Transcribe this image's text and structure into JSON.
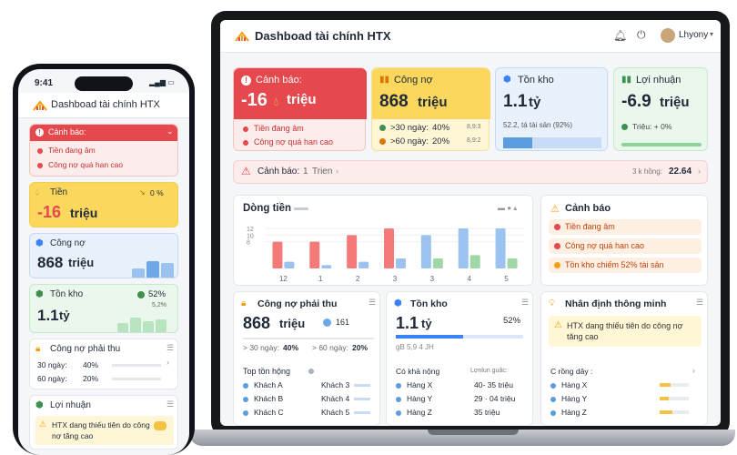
{
  "colors": {
    "red": "#e5484d",
    "red_light": "#fdecec",
    "yellow": "#fbd85d",
    "yellow_light": "#fff6d6",
    "blue": "#6fa8e6",
    "blue_light": "#e8f1fc",
    "green": "#7ccf8a",
    "green_light": "#e9f7ec",
    "accent": "#f59e0b"
  },
  "app": {
    "title": "Dashboad tài chính HTX",
    "user": "Lhyony"
  },
  "kpi": {
    "warning": {
      "label": "Cảnh báo:",
      "value": "-16",
      "unit": "triệu",
      "items": [
        "Tiền đang âm",
        "Công nợ quá han cao"
      ]
    },
    "debt": {
      "label": "Công nợ",
      "value": "868",
      "unit": "triệu",
      "rows": [
        {
          "label": ">30 ngày:",
          "pct": "40%",
          "note": "8,9:3"
        },
        {
          "label": ">60 ngày:",
          "pct": "20%",
          "note": "8,9:2"
        }
      ]
    },
    "stock": {
      "label": "Tồn kho",
      "value": "1.1",
      "unit": "tỷ",
      "note": "52.2, tá tài sản (92%)"
    },
    "profit": {
      "label": "Lợi nhuận",
      "value": "-6.9",
      "unit": "triệu",
      "note": "Triệu: + 0%"
    }
  },
  "banner": {
    "label": "Cảnh báo:",
    "count": "1",
    "link": "Trien",
    "right_text": "3 k hồng:",
    "right_value": "22.64"
  },
  "cashflow": {
    "title": "Dòng tiền",
    "y_ticks": [
      "12",
      "10",
      "8"
    ],
    "x_labels": [
      "12",
      "1",
      "2",
      "3",
      "3",
      "4",
      "5"
    ]
  },
  "chart_data": {
    "type": "bar",
    "categories": [
      "12",
      "1",
      "2",
      "3",
      "3",
      "4",
      "5"
    ],
    "series": [
      {
        "values": [
          8,
          8,
          10,
          12,
          0,
          0,
          0
        ],
        "color": "#f47a7a"
      },
      {
        "values": [
          2,
          1,
          2,
          3,
          10,
          12,
          12
        ],
        "color": "#9cc3ef"
      },
      {
        "values": [
          0,
          0,
          0,
          0,
          3,
          4,
          3
        ],
        "color": "#9fd8a6"
      }
    ],
    "y_ticks": [
      12,
      10,
      8
    ]
  },
  "alerts": {
    "title": "Cảnh báo",
    "items": [
      "Tiền đang âm",
      "Công nợ quá han cao",
      "Tồn kho chiếm 52% tài sản"
    ]
  },
  "receivable": {
    "title": "Công nợ phải thu",
    "value": "868",
    "unit": "triệu",
    "chip": "161",
    "over30_label": "> 30 ngày:",
    "over30": "40%",
    "over60_label": "> 60 ngày:",
    "over60": "20%",
    "top_title": "Top tồn hộng",
    "customers": [
      "Khách A",
      "Khách B",
      "Khách C"
    ],
    "customers_right": [
      "Khách 3",
      "Khách 4",
      "Khách 5"
    ]
  },
  "inventory": {
    "title": "Tồn kho",
    "value": "1.1",
    "unit": "tỷ",
    "pct": "52%",
    "sub": "gB  5,9 4 JH",
    "list_title": "Có khả nộng",
    "list_right_title": "Lợnlun guâc:",
    "goods": [
      {
        "name": "Hàng X",
        "note": "40- 35 triệu"
      },
      {
        "name": "Hàng Y",
        "note": "29 · 04 triệu"
      },
      {
        "name": "Hàng Z",
        "note": "35 triệu"
      }
    ]
  },
  "insight": {
    "title": "Nhân định thông minh",
    "message": "HTX dang thiếu tiên do công nợ tăng cao",
    "list_title": "C rồng dây :",
    "items": [
      "Hàng X",
      "Hàng Y",
      "Hàng Z"
    ]
  },
  "phone": {
    "time": "9:41",
    "title": "Dashboad tài chính HTX",
    "warning": {
      "label": "Cảnh báo:",
      "items": [
        "Tiền đang âm",
        "Công nợ quá han cao"
      ]
    },
    "cash": {
      "label": "Tiền",
      "pct": "0 %",
      "value": "-16",
      "unit": "triệu"
    },
    "debt": {
      "label": "Công nợ",
      "value": "868",
      "unit": "triệu"
    },
    "stock": {
      "label": "Tồn kho",
      "pct": "52%",
      "note": "5,2%",
      "value": "1.1",
      "unit": "tỷ"
    },
    "receivable": {
      "label": "Công nợ phải thu",
      "rows": [
        {
          "label": "30 ngày:",
          "pct": "40%"
        },
        {
          "label": "60 ngày:",
          "pct": "20%"
        }
      ]
    },
    "profit": {
      "label": "Lợi nhuận",
      "message": "HTX dang thiếu tiên do công nợ tăng cao"
    }
  }
}
